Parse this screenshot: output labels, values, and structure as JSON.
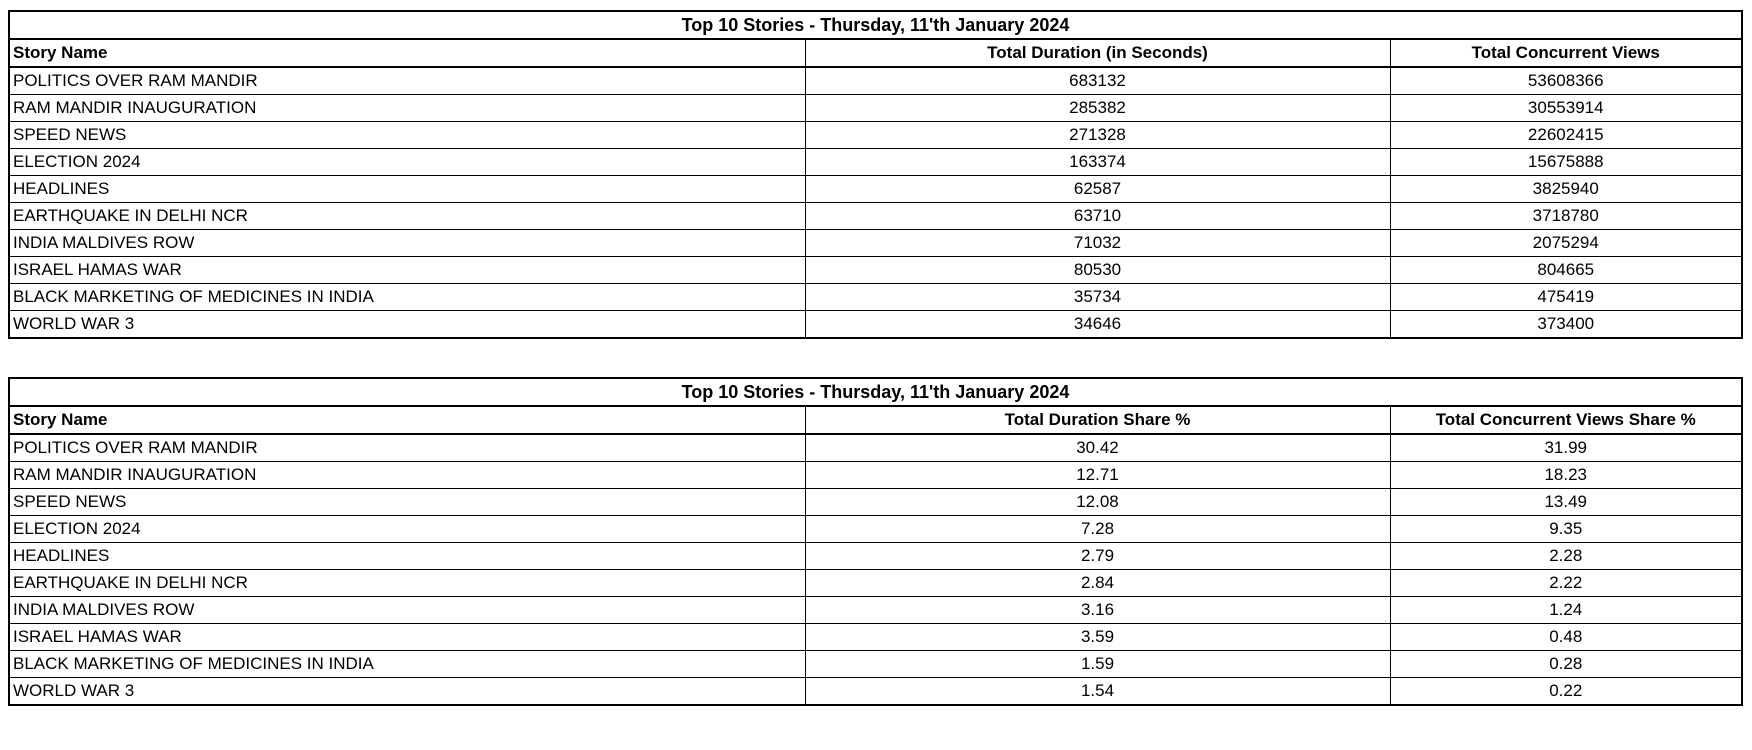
{
  "page": {
    "background": "#ffffff",
    "border_color": "#000000",
    "text_color": "#000000"
  },
  "chart_data": [
    {
      "type": "table",
      "name": "top-stories-totals-table",
      "title": "Top 10 Stories - Thursday, 11'th January 2024",
      "columns": [
        "Story Name",
        "Total Duration (in Seconds)",
        "Total Concurrent Views"
      ],
      "column_alignments": [
        "left",
        "center",
        "center"
      ],
      "rows": [
        [
          "POLITICS OVER RAM MANDIR",
          "683132",
          "53608366"
        ],
        [
          "RAM MANDIR INAUGURATION",
          "285382",
          "30553914"
        ],
        [
          "SPEED NEWS",
          "271328",
          "22602415"
        ],
        [
          "ELECTION 2024",
          "163374",
          "15675888"
        ],
        [
          "HEADLINES",
          "62587",
          "3825940"
        ],
        [
          "EARTHQUAKE IN DELHI NCR",
          "63710",
          "3718780"
        ],
        [
          "INDIA MALDIVES ROW",
          "71032",
          "2075294"
        ],
        [
          "ISRAEL HAMAS WAR",
          "80530",
          "804665"
        ],
        [
          "BLACK MARKETING OF MEDICINES IN INDIA",
          "35734",
          "475419"
        ],
        [
          "WORLD WAR 3",
          "34646",
          "373400"
        ]
      ]
    },
    {
      "type": "table",
      "name": "top-stories-share-table",
      "title": "Top 10 Stories - Thursday, 11'th January 2024",
      "columns": [
        "Story Name",
        "Total Duration Share %",
        "Total Concurrent Views Share %"
      ],
      "column_alignments": [
        "left",
        "center",
        "center"
      ],
      "rows": [
        [
          "POLITICS OVER RAM MANDIR",
          "30.42",
          "31.99"
        ],
        [
          "RAM MANDIR INAUGURATION",
          "12.71",
          "18.23"
        ],
        [
          "SPEED NEWS",
          "12.08",
          "13.49"
        ],
        [
          "ELECTION 2024",
          "7.28",
          "9.35"
        ],
        [
          "HEADLINES",
          "2.79",
          "2.28"
        ],
        [
          "EARTHQUAKE IN DELHI NCR",
          "2.84",
          "2.22"
        ],
        [
          "INDIA MALDIVES ROW",
          "3.16",
          "1.24"
        ],
        [
          "ISRAEL HAMAS WAR",
          "3.59",
          "0.48"
        ],
        [
          "BLACK MARKETING OF MEDICINES IN INDIA",
          "1.59",
          "0.28"
        ],
        [
          "WORLD WAR 3",
          "1.54",
          "0.22"
        ]
      ]
    }
  ]
}
